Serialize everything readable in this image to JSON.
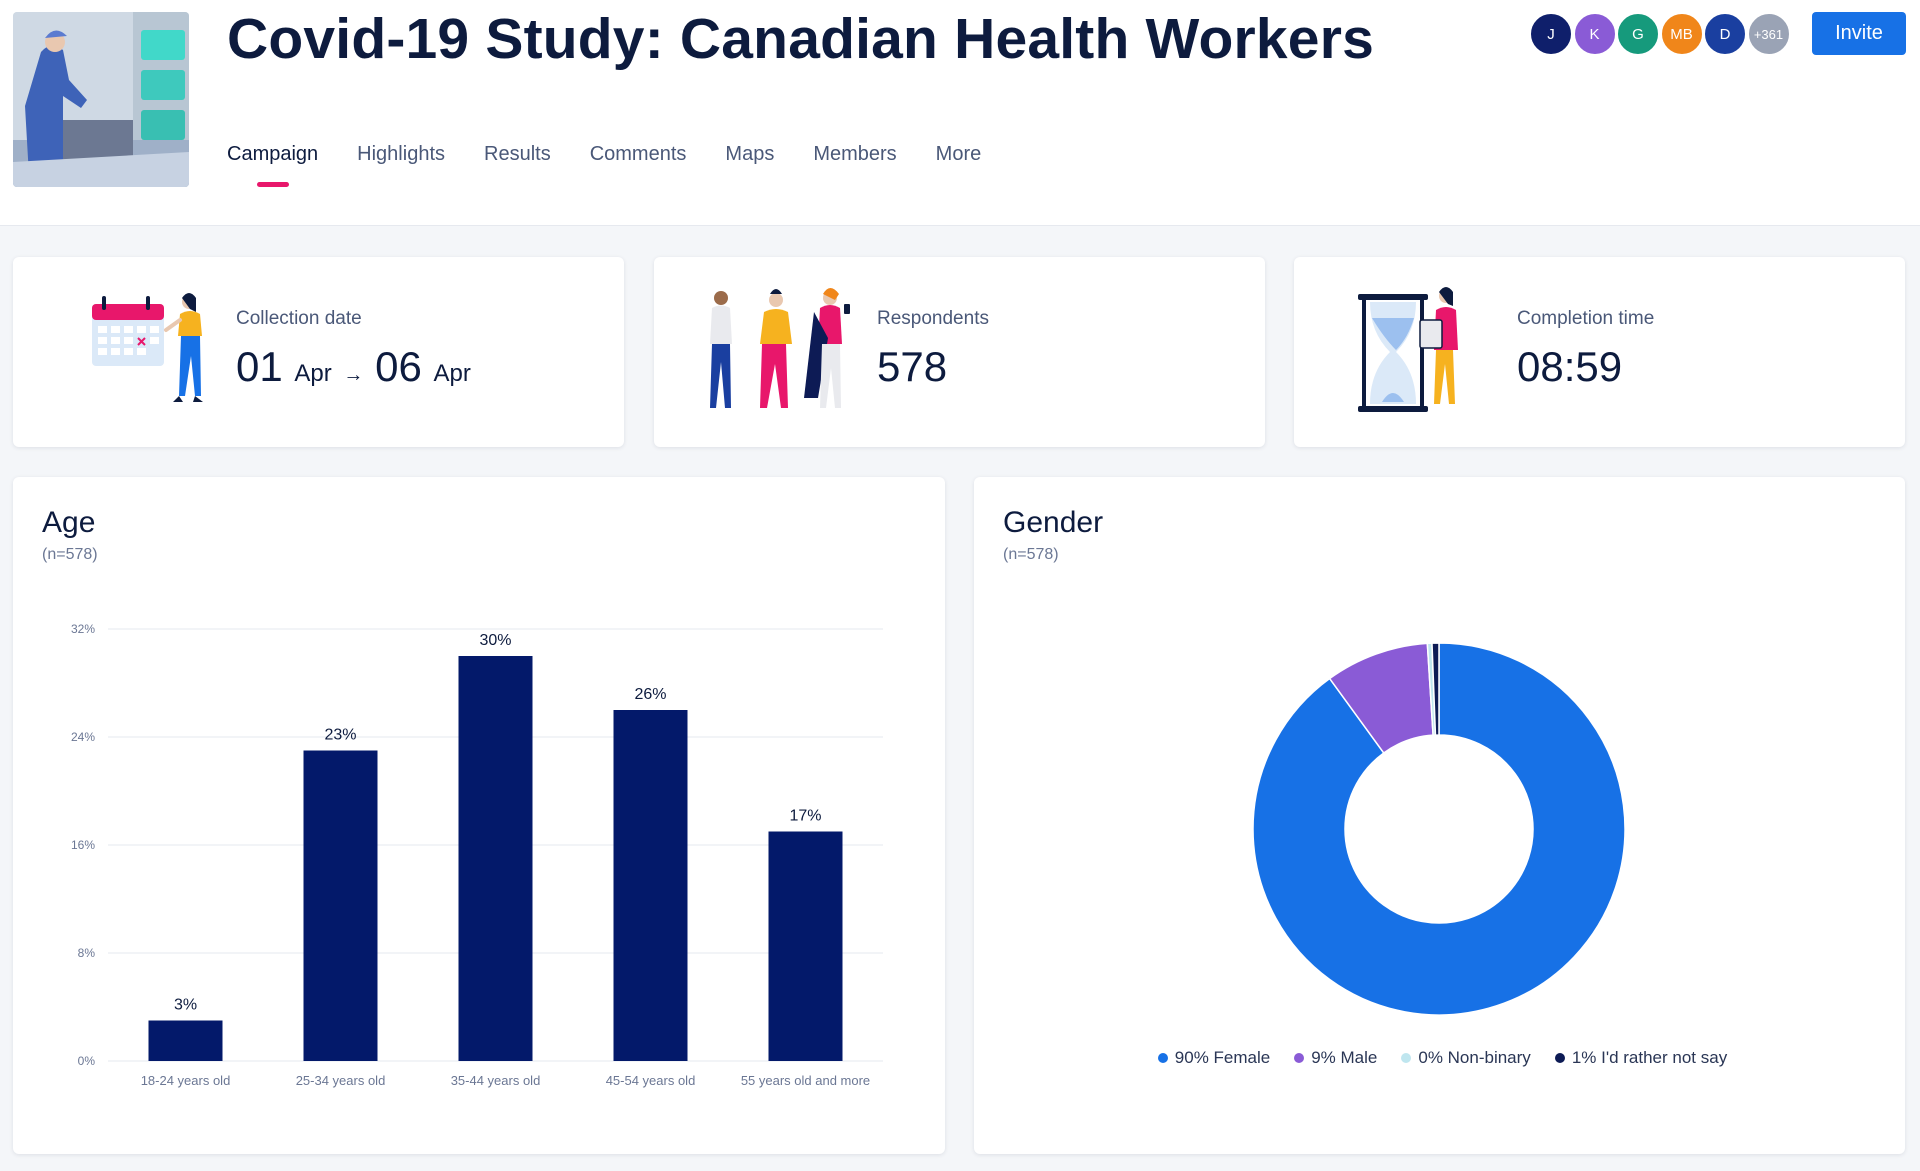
{
  "header": {
    "title": "Covid-19 Study: Canadian Health Workers",
    "tabs": [
      "Campaign",
      "Highlights",
      "Results",
      "Comments",
      "Maps",
      "Members",
      "More"
    ],
    "active_tab": "Campaign",
    "members": [
      {
        "initials": "J",
        "color": "#0f1f6b"
      },
      {
        "initials": "K",
        "color": "#8a5bd6"
      },
      {
        "initials": "G",
        "color": "#169a7c"
      },
      {
        "initials": "MB",
        "color": "#f0861a"
      },
      {
        "initials": "D",
        "color": "#1a3fa0"
      },
      {
        "initials": "+361",
        "color": "#9aa3b5"
      }
    ],
    "invite_label": "Invite"
  },
  "stats": {
    "collection": {
      "label": "Collection date",
      "start_day": "01",
      "start_month": "Apr",
      "arrow": "→",
      "end_day": "06",
      "end_month": "Apr"
    },
    "respondents": {
      "label": "Respondents",
      "value": "578"
    },
    "completion": {
      "label": "Completion time",
      "value": "08:59"
    }
  },
  "age_panel": {
    "title": "Age",
    "subtitle": "(n=578)"
  },
  "gender_panel": {
    "title": "Gender",
    "subtitle": "(n=578)"
  },
  "colors": {
    "accent": "#e8176b",
    "primary": "#1771e6",
    "bar": "#03196a"
  },
  "chart_data": [
    {
      "type": "bar",
      "title": "Age",
      "subtitle": "(n=578)",
      "categories": [
        "18-24 years old",
        "25-34 years old",
        "35-44 years old",
        "45-54 years old",
        "55 years old and more"
      ],
      "values": [
        3,
        23,
        30,
        26,
        17
      ],
      "value_labels": [
        "3%",
        "23%",
        "30%",
        "26%",
        "17%"
      ],
      "yticks": [
        "0%",
        "8%",
        "16%",
        "24%",
        "32%"
      ],
      "ylim": [
        0,
        32
      ],
      "grid": true,
      "color": "#03196a"
    },
    {
      "type": "pie",
      "donut": true,
      "title": "Gender",
      "subtitle": "(n=578)",
      "slices": [
        {
          "label": "90% Female",
          "value": 90,
          "color": "#1771e6"
        },
        {
          "label": "9% Male",
          "value": 9,
          "color": "#8a5bd6"
        },
        {
          "label": "0% Non-binary",
          "value": 0.4,
          "color": "#bfe6ef"
        },
        {
          "label": "1% I'd rather not say",
          "value": 0.6,
          "color": "#0d1b55"
        }
      ],
      "legend_position": "bottom"
    }
  ]
}
